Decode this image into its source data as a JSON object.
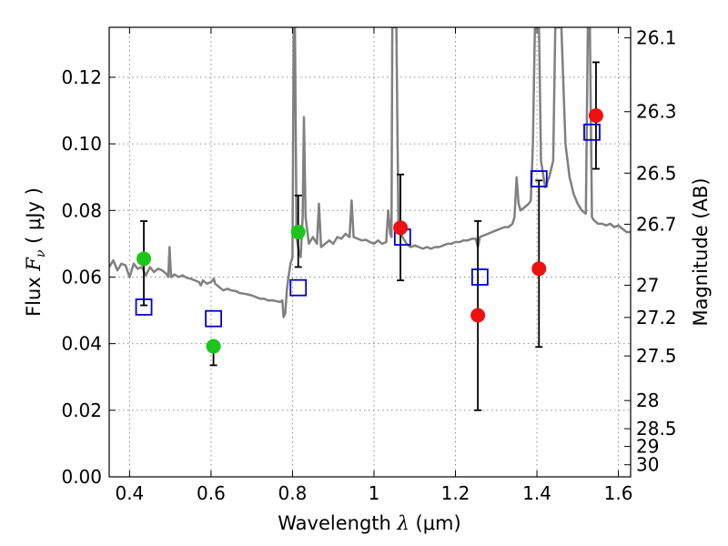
{
  "chart_data": {
    "type": "scatter",
    "xlabel": {
      "prefix": "Wavelength  ",
      "symbol": "λ",
      "unit": " (μm)"
    },
    "ylabel": {
      "prefix": "Flux  ",
      "symbol": "F",
      "sub": "ν",
      "unit": "  ( μJy )"
    },
    "y2label": "Magnitude (AB)",
    "xlim": [
      0.35,
      1.63
    ],
    "ylim": [
      0.0,
      0.135
    ],
    "xticks": [
      {
        "value": 0.4,
        "label": "0.4"
      },
      {
        "value": 0.6,
        "label": "0.6"
      },
      {
        "value": 0.8,
        "label": "0.8"
      },
      {
        "value": 1.0,
        "label": "1"
      },
      {
        "value": 1.2,
        "label": "1.2"
      },
      {
        "value": 1.4,
        "label": "1.4"
      },
      {
        "value": 1.6,
        "label": "1.6"
      }
    ],
    "yticks": [
      {
        "value": 0.0,
        "label": "0.00"
      },
      {
        "value": 0.02,
        "label": "0.02"
      },
      {
        "value": 0.04,
        "label": "0.04"
      },
      {
        "value": 0.06,
        "label": "0.06"
      },
      {
        "value": 0.08,
        "label": "0.08"
      },
      {
        "value": 0.1,
        "label": "0.10"
      },
      {
        "value": 0.12,
        "label": "0.12"
      }
    ],
    "y2ticks": [
      {
        "value": 26.1,
        "label": "26.1"
      },
      {
        "value": 26.3,
        "label": "26.3"
      },
      {
        "value": 26.5,
        "label": "26.5"
      },
      {
        "value": 26.7,
        "label": "26.7"
      },
      {
        "value": 27.0,
        "label": "27"
      },
      {
        "value": 27.2,
        "label": "27.2"
      },
      {
        "value": 27.5,
        "label": "27.5"
      },
      {
        "value": 28.0,
        "label": "28"
      },
      {
        "value": 28.5,
        "label": "28.5"
      },
      {
        "value": 29.0,
        "label": "29"
      },
      {
        "value": 30.0,
        "label": "30"
      }
    ],
    "grid": true,
    "colors": {
      "spectrum": "#808080",
      "green": "#1cc41c",
      "red": "#ee1111",
      "model": "#0000cc",
      "errorbar": "#000000"
    },
    "observed_green": [
      {
        "x": 0.435,
        "y": 0.0655,
        "ylow": 0.0515,
        "yhigh": 0.0768
      },
      {
        "x": 0.606,
        "y": 0.0392,
        "ylow": 0.0335,
        "yhigh": 0.0395
      },
      {
        "x": 0.814,
        "y": 0.0735,
        "ylow": 0.063,
        "yhigh": 0.0845
      }
    ],
    "observed_red": [
      {
        "x": 1.065,
        "y": 0.0748,
        "ylow": 0.059,
        "yhigh": 0.0908
      },
      {
        "x": 1.255,
        "y": 0.0485,
        "ylow": 0.02,
        "yhigh": 0.0768
      },
      {
        "x": 1.405,
        "y": 0.0625,
        "ylow": 0.039,
        "yhigh": 0.089
      },
      {
        "x": 1.545,
        "y": 0.1085,
        "ylow": 0.0925,
        "yhigh": 0.1245
      }
    ],
    "model_photometry": [
      {
        "x": 0.435,
        "y": 0.051
      },
      {
        "x": 0.606,
        "y": 0.0475
      },
      {
        "x": 0.814,
        "y": 0.0568
      },
      {
        "x": 1.07,
        "y": 0.072
      },
      {
        "x": 1.26,
        "y": 0.06
      },
      {
        "x": 1.405,
        "y": 0.0895
      },
      {
        "x": 1.535,
        "y": 0.1035
      }
    ],
    "spectrum": [
      [
        0.35,
        0.063
      ],
      [
        0.36,
        0.065
      ],
      [
        0.37,
        0.062
      ],
      [
        0.38,
        0.064
      ],
      [
        0.39,
        0.0635
      ],
      [
        0.4,
        0.06
      ],
      [
        0.41,
        0.064
      ],
      [
        0.42,
        0.0625
      ],
      [
        0.43,
        0.063
      ],
      [
        0.44,
        0.0605
      ],
      [
        0.45,
        0.063
      ],
      [
        0.46,
        0.0615
      ],
      [
        0.47,
        0.0625
      ],
      [
        0.48,
        0.062
      ],
      [
        0.49,
        0.061
      ],
      [
        0.495,
        0.06
      ],
      [
        0.498,
        0.069
      ],
      [
        0.502,
        0.06
      ],
      [
        0.51,
        0.0608
      ],
      [
        0.52,
        0.06
      ],
      [
        0.53,
        0.0605
      ],
      [
        0.54,
        0.0598
      ],
      [
        0.55,
        0.0595
      ],
      [
        0.56,
        0.059
      ],
      [
        0.57,
        0.0585
      ],
      [
        0.575,
        0.0575
      ],
      [
        0.58,
        0.059
      ],
      [
        0.59,
        0.058
      ],
      [
        0.6,
        0.0585
      ],
      [
        0.604,
        0.059
      ],
      [
        0.607,
        0.0595
      ],
      [
        0.61,
        0.058
      ],
      [
        0.62,
        0.057
      ],
      [
        0.63,
        0.056
      ],
      [
        0.64,
        0.0565
      ],
      [
        0.65,
        0.056
      ],
      [
        0.66,
        0.0558
      ],
      [
        0.67,
        0.0552
      ],
      [
        0.68,
        0.055
      ],
      [
        0.69,
        0.0548
      ],
      [
        0.7,
        0.0545
      ],
      [
        0.71,
        0.054
      ],
      [
        0.72,
        0.0535
      ],
      [
        0.73,
        0.0535
      ],
      [
        0.74,
        0.053
      ],
      [
        0.75,
        0.053
      ],
      [
        0.76,
        0.0528
      ],
      [
        0.77,
        0.0525
      ],
      [
        0.775,
        0.053
      ],
      [
        0.778,
        0.048
      ],
      [
        0.782,
        0.049
      ],
      [
        0.786,
        0.056
      ],
      [
        0.79,
        0.06
      ],
      [
        0.795,
        0.064
      ],
      [
        0.8,
        0.066
      ],
      [
        0.803,
        0.135
      ],
      [
        0.806,
        0.135
      ],
      [
        0.81,
        0.072
      ],
      [
        0.815,
        0.068
      ],
      [
        0.82,
        0.066
      ],
      [
        0.825,
        0.078
      ],
      [
        0.828,
        0.108
      ],
      [
        0.832,
        0.078
      ],
      [
        0.84,
        0.07
      ],
      [
        0.85,
        0.072
      ],
      [
        0.86,
        0.07
      ],
      [
        0.865,
        0.082
      ],
      [
        0.87,
        0.069
      ],
      [
        0.88,
        0.07
      ],
      [
        0.89,
        0.071
      ],
      [
        0.9,
        0.07
      ],
      [
        0.91,
        0.072
      ],
      [
        0.92,
        0.0715
      ],
      [
        0.93,
        0.073
      ],
      [
        0.94,
        0.072
      ],
      [
        0.945,
        0.083
      ],
      [
        0.95,
        0.072
      ],
      [
        0.96,
        0.0715
      ],
      [
        0.97,
        0.071
      ],
      [
        0.98,
        0.0712
      ],
      [
        0.99,
        0.0705
      ],
      [
        1.0,
        0.07
      ],
      [
        1.01,
        0.071
      ],
      [
        1.02,
        0.07
      ],
      [
        1.03,
        0.0705
      ],
      [
        1.035,
        0.08
      ],
      [
        1.04,
        0.073
      ],
      [
        1.043,
        0.072
      ],
      [
        1.045,
        0.135
      ],
      [
        1.055,
        0.135
      ],
      [
        1.06,
        0.076
      ],
      [
        1.07,
        0.072
      ],
      [
        1.08,
        0.07
      ],
      [
        1.09,
        0.069
      ],
      [
        1.1,
        0.0695
      ],
      [
        1.11,
        0.069
      ],
      [
        1.12,
        0.0685
      ],
      [
        1.13,
        0.069
      ],
      [
        1.14,
        0.0685
      ],
      [
        1.15,
        0.069
      ],
      [
        1.16,
        0.069
      ],
      [
        1.17,
        0.0695
      ],
      [
        1.18,
        0.07
      ],
      [
        1.19,
        0.07
      ],
      [
        1.2,
        0.0705
      ],
      [
        1.21,
        0.0705
      ],
      [
        1.22,
        0.071
      ],
      [
        1.23,
        0.071
      ],
      [
        1.24,
        0.0715
      ],
      [
        1.25,
        0.0715
      ],
      [
        1.255,
        0.069
      ],
      [
        1.26,
        0.072
      ],
      [
        1.27,
        0.0725
      ],
      [
        1.28,
        0.073
      ],
      [
        1.29,
        0.0735
      ],
      [
        1.3,
        0.074
      ],
      [
        1.31,
        0.0745
      ],
      [
        1.32,
        0.075
      ],
      [
        1.33,
        0.075
      ],
      [
        1.34,
        0.076
      ],
      [
        1.345,
        0.078
      ],
      [
        1.35,
        0.09
      ],
      [
        1.355,
        0.082
      ],
      [
        1.36,
        0.08
      ],
      [
        1.37,
        0.081
      ],
      [
        1.38,
        0.082
      ],
      [
        1.385,
        0.083
      ],
      [
        1.39,
        0.1
      ],
      [
        1.395,
        0.135
      ],
      [
        1.405,
        0.135
      ],
      [
        1.41,
        0.095
      ],
      [
        1.42,
        0.087
      ],
      [
        1.43,
        0.09
      ],
      [
        1.44,
        0.095
      ],
      [
        1.445,
        0.135
      ],
      [
        1.46,
        0.135
      ],
      [
        1.47,
        0.1
      ],
      [
        1.48,
        0.09
      ],
      [
        1.49,
        0.085
      ],
      [
        1.5,
        0.082
      ],
      [
        1.51,
        0.08
      ],
      [
        1.52,
        0.079
      ],
      [
        1.525,
        0.135
      ],
      [
        1.53,
        0.135
      ],
      [
        1.535,
        0.078
      ],
      [
        1.54,
        0.077
      ],
      [
        1.55,
        0.076
      ],
      [
        1.56,
        0.076
      ],
      [
        1.57,
        0.0755
      ],
      [
        1.58,
        0.076
      ],
      [
        1.59,
        0.075
      ],
      [
        1.6,
        0.0755
      ],
      [
        1.61,
        0.0745
      ],
      [
        1.62,
        0.0735
      ],
      [
        1.63,
        0.0735
      ]
    ]
  }
}
